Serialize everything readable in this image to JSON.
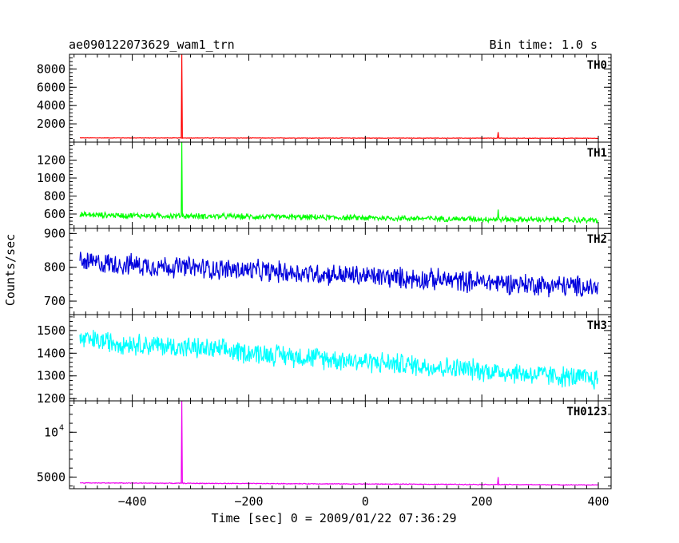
{
  "header": {
    "title": "ae090122073629_wam1_trn",
    "bin_time": "Bin time: 1.0 s"
  },
  "chart_data": {
    "type": "line",
    "xlabel": "Time [sec] 0 = 2009/01/22 07:36:29",
    "ylabel": "Counts/sec",
    "xlim": [
      -510,
      410
    ],
    "x_ticks": [
      -400,
      -200,
      0,
      200,
      400
    ],
    "panels": [
      {
        "name": "TH0",
        "color": "#ff0000",
        "ylim": [
          0,
          9600
        ],
        "y_ticks": [
          {
            "v": 2000,
            "t": "2000"
          },
          {
            "v": 4000,
            "t": "4000"
          },
          {
            "v": 6000,
            "t": "6000"
          },
          {
            "v": 8000,
            "t": "8000"
          }
        ],
        "baseline_start": 460,
        "baseline_end": 420,
        "noise": 25,
        "spikes": [
          {
            "x": -315,
            "y": 9600
          },
          {
            "x": 228,
            "y": 1100
          }
        ]
      },
      {
        "name": "TH1",
        "color": "#00ff00",
        "ylim": [
          440,
          1400
        ],
        "y_ticks": [
          {
            "v": 600,
            "t": "600"
          },
          {
            "v": 800,
            "t": "800"
          },
          {
            "v": 1000,
            "t": "1000"
          },
          {
            "v": 1200,
            "t": "1200"
          }
        ],
        "baseline_start": 590,
        "baseline_end": 530,
        "noise": 30,
        "spikes": [
          {
            "x": -315,
            "y": 1400
          },
          {
            "x": 228,
            "y": 650
          }
        ]
      },
      {
        "name": "TH2",
        "color": "#0000dd",
        "ylim": [
          660,
          915
        ],
        "y_ticks": [
          {
            "v": 700,
            "t": "700"
          },
          {
            "v": 800,
            "t": "800"
          },
          {
            "v": 900,
            "t": "900"
          }
        ],
        "baseline_start": 815,
        "baseline_end": 740,
        "noise": 30,
        "spikes": []
      },
      {
        "name": "TH3",
        "color": "#00ffff",
        "ylim": [
          1190,
          1570
        ],
        "y_ticks": [
          {
            "v": 1200,
            "t": "1200"
          },
          {
            "v": 1300,
            "t": "1300"
          },
          {
            "v": 1400,
            "t": "1400"
          },
          {
            "v": 1500,
            "t": "1500"
          }
        ],
        "baseline_start": 1460,
        "baseline_end": 1285,
        "noise": 45,
        "spikes": []
      },
      {
        "name": "TH0123",
        "color": "#ee00ee",
        "ylim": [
          3700,
          13500
        ],
        "y_ticks": [
          {
            "v": 5000,
            "t": "5000"
          },
          {
            "v": 10000,
            "t": "10",
            "sup": "4"
          }
        ],
        "baseline_start": 4350,
        "baseline_end": 4120,
        "noise": 40,
        "spikes": [
          {
            "x": -315,
            "y": 13500
          },
          {
            "x": 228,
            "y": 5000
          }
        ]
      }
    ]
  }
}
